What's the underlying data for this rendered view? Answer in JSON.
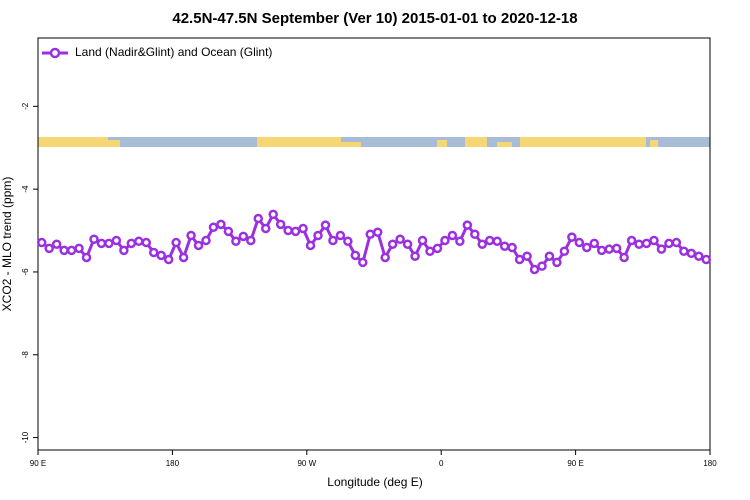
{
  "chart_data": {
    "type": "line",
    "title": "42.5N-47.5N September (Ver 10)   2015-01-01 to 2020-12-18",
    "x_label": "Longitude (deg E)",
    "y_label": "XCO2 - MLO trend (ppm)",
    "legend": "top-left",
    "xlim": [
      90,
      540
    ],
    "xticks": [
      {
        "value": 90,
        "label": "90 E"
      },
      180,
      {
        "value": 270,
        "label": "90 W"
      },
      {
        "value": 360,
        "label": "0"
      },
      {
        "value": 450,
        "label": "90 E"
      },
      {
        "value": 540,
        "label": "180"
      }
    ],
    "ylim": [
      -10.3,
      -0.35
    ],
    "yticks": [
      -2,
      -4,
      -6,
      -8,
      -10
    ],
    "x": [
      92.5,
      97.5,
      102.5,
      107.5,
      112.5,
      117.5,
      122.5,
      127.5,
      132.5,
      137.5,
      142.5,
      147.5,
      152.5,
      157.5,
      162.5,
      167.5,
      172.5,
      177.5,
      182.5,
      187.5,
      192.5,
      197.5,
      202.5,
      207.5,
      212.5,
      217.5,
      222.5,
      227.5,
      232.5,
      237.5,
      242.5,
      247.5,
      252.5,
      257.5,
      262.5,
      267.5,
      272.5,
      277.5,
      282.5,
      287.5,
      292.5,
      297.5,
      302.5,
      307.5,
      312.5,
      317.5,
      322.5,
      327.5,
      332.5,
      337.5,
      342.5,
      347.5,
      352.5,
      357.5,
      362.5,
      367.5,
      372.5,
      377.5,
      382.5,
      387.5,
      392.5,
      397.5,
      402.5,
      407.5,
      412.5,
      417.5,
      422.5,
      427.5,
      432.5,
      437.5,
      442.5,
      447.5,
      452.5,
      457.5,
      462.5,
      467.5,
      472.5,
      477.5,
      482.5,
      487.5,
      492.5,
      497.5,
      502.5,
      507.5,
      512.5,
      517.5,
      522.5,
      527.5,
      532.5,
      537.5
    ],
    "series": [
      {
        "name": "Land (Nadir&Glint) and Ocean (Glint)",
        "color": "#9b30e0",
        "values": [
          -5.29,
          -5.43,
          -5.33,
          -5.48,
          -5.48,
          -5.43,
          -5.65,
          -5.21,
          -5.31,
          -5.31,
          -5.24,
          -5.48,
          -5.31,
          -5.26,
          -5.29,
          -5.53,
          -5.6,
          -5.7,
          -5.29,
          -5.65,
          -5.12,
          -5.36,
          -5.24,
          -4.92,
          -4.85,
          -5.02,
          -5.26,
          -5.14,
          -5.24,
          -4.71,
          -4.95,
          -4.61,
          -4.85,
          -5.0,
          -5.02,
          -4.95,
          -5.36,
          -5.12,
          -4.87,
          -5.24,
          -5.12,
          -5.26,
          -5.6,
          -5.77,
          -5.09,
          -5.04,
          -5.65,
          -5.33,
          -5.21,
          -5.33,
          -5.62,
          -5.24,
          -5.5,
          -5.43,
          -5.24,
          -5.12,
          -5.26,
          -4.87,
          -5.09,
          -5.33,
          -5.24,
          -5.26,
          -5.38,
          -5.41,
          -5.7,
          -5.62,
          -5.94,
          -5.86,
          -5.62,
          -5.77,
          -5.5,
          -5.16,
          -5.29,
          -5.41,
          -5.31,
          -5.48,
          -5.45,
          -5.43,
          -5.65,
          -5.24,
          -5.33,
          -5.31,
          -5.24,
          -5.45,
          -5.31,
          -5.29,
          -5.5,
          -5.55,
          -5.62,
          -5.7
        ]
      }
    ]
  }
}
